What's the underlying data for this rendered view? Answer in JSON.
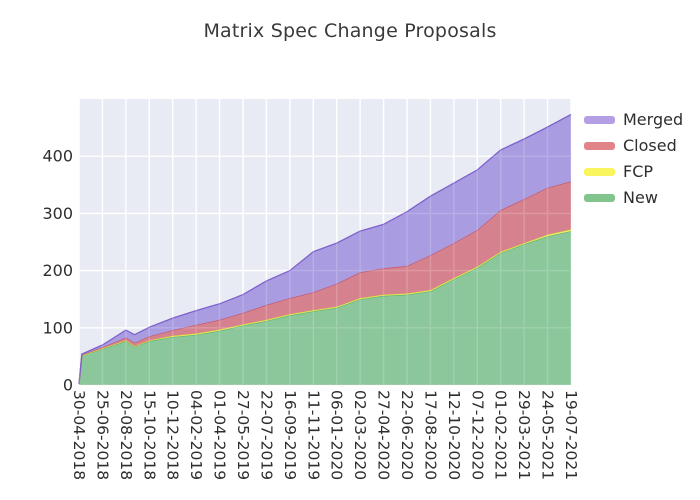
{
  "title": "Matrix Spec Change Proposals",
  "legend": {
    "items": [
      {
        "label": "Merged",
        "color": "#b3a0e4"
      },
      {
        "label": "Closed",
        "color": "#e28487"
      },
      {
        "label": "FCP",
        "color": "#f8f55e"
      },
      {
        "label": "New",
        "color": "#82c48d"
      }
    ]
  },
  "chart_data": {
    "type": "area",
    "stacked": true,
    "title": "Matrix Spec Change Proposals",
    "plot_bg": "#e9ebf4",
    "grid_color": "#ffffff",
    "grid": true,
    "legend_position": "right",
    "ylim": [
      0,
      500
    ],
    "y_ticks": [
      0,
      100,
      200,
      300,
      400
    ],
    "x_tick_labels": [
      "30-04-2018",
      "25-06-2018",
      "20-08-2018",
      "15-10-2018",
      "10-12-2018",
      "04-02-2019",
      "01-04-2019",
      "27-05-2019",
      "22-07-2019",
      "16-09-2019",
      "11-11-2019",
      "06-01-2020",
      "02-03-2020",
      "27-04-2020",
      "22-06-2020",
      "17-08-2020",
      "12-10-2020",
      "07-12-2020",
      "01-02-2021",
      "29-03-2021",
      "24-05-2021",
      "19-07-2021"
    ],
    "x": [
      "30-04-2018",
      "07-05-2018",
      "25-06-2018",
      "20-08-2018",
      "10-09-2018",
      "15-10-2018",
      "10-12-2018",
      "04-02-2019",
      "01-04-2019",
      "27-05-2019",
      "22-07-2019",
      "16-09-2019",
      "11-11-2019",
      "06-01-2020",
      "02-03-2020",
      "27-04-2020",
      "22-06-2020",
      "17-08-2020",
      "12-10-2020",
      "07-12-2020",
      "01-02-2021",
      "29-03-2021",
      "24-05-2021",
      "19-07-2021"
    ],
    "series": [
      {
        "name": "New",
        "fill": "#8bc79b",
        "line": "#5bb172",
        "values": [
          2,
          52,
          63,
          77,
          67,
          77,
          84,
          88,
          95,
          104,
          112,
          122,
          129,
          135,
          150,
          156,
          158,
          164,
          185,
          205,
          231,
          246,
          260,
          269
        ]
      },
      {
        "name": "FCP",
        "fill": "#f2ef70",
        "line": "#dbd83a",
        "values": [
          0,
          0,
          1,
          1,
          1,
          1,
          2,
          2,
          2,
          2,
          2,
          2,
          2,
          2,
          2,
          2,
          2,
          2,
          2,
          2,
          2,
          2,
          3,
          3
        ]
      },
      {
        "name": "Closed",
        "fill": "#d6828e",
        "line": "#c25669",
        "values": [
          0,
          1,
          2,
          5,
          6,
          7,
          10,
          15,
          17,
          20,
          26,
          28,
          31,
          40,
          45,
          46,
          48,
          61,
          61,
          64,
          73,
          77,
          82,
          84
        ]
      },
      {
        "name": "Merged",
        "fill": "#a99ce1",
        "line": "#7e61cd",
        "values": [
          0,
          1,
          4,
          13,
          14,
          16,
          21,
          25,
          28,
          32,
          42,
          48,
          71,
          71,
          72,
          77,
          95,
          103,
          105,
          105,
          105,
          105,
          106,
          117
        ]
      }
    ]
  }
}
